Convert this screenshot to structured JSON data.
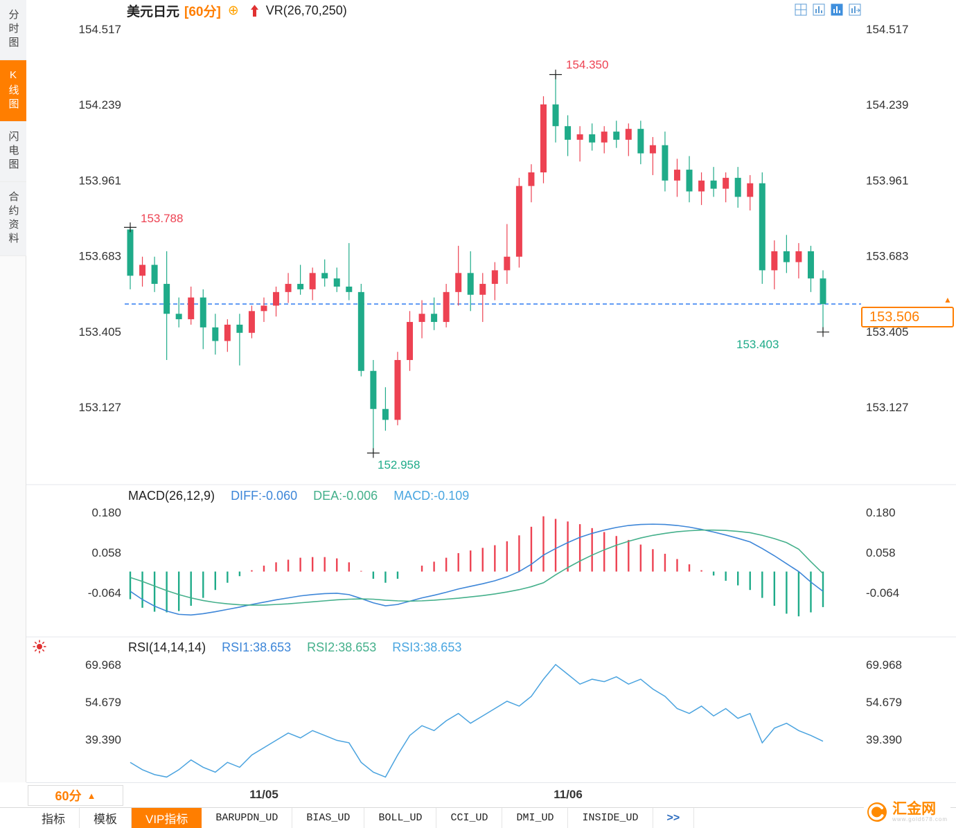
{
  "header": {
    "symbol": "美元日元",
    "timeframe": "[60分]",
    "vr_label": "VR(26,70,250)"
  },
  "icons": {
    "add": "⊕",
    "caret_up": "▲",
    "marker_up": "▲"
  },
  "sidebar": {
    "tabs": [
      {
        "label": "分时图",
        "active": false
      },
      {
        "label": "K线图",
        "active": true
      },
      {
        "label": "闪电图",
        "active": false
      },
      {
        "label": "合约资料",
        "active": false
      }
    ]
  },
  "colors": {
    "up": "#ed4252",
    "down": "#1fab89",
    "accent": "#ff7e00",
    "dashed_line": "#2e7bf0",
    "diff_line": "#3d86d8",
    "dea_line": "#44b08b",
    "rsi_line": "#4aa3df"
  },
  "chart_data": {
    "type": "candlestick",
    "title": "美元日元 60分 K线图",
    "price_axis": [
      "154.517",
      "154.239",
      "153.961",
      "153.683",
      "153.405",
      "153.127"
    ],
    "current_price": "153.506",
    "annotations": [
      {
        "text": "153.788",
        "type": "high",
        "candle": 0,
        "color": "up"
      },
      {
        "text": "154.350",
        "type": "high",
        "candle": 35,
        "color": "up"
      },
      {
        "text": "152.958",
        "type": "low",
        "candle": 20,
        "color": "down"
      },
      {
        "text": "153.403",
        "type": "low",
        "candle": 57,
        "color": "down"
      }
    ],
    "x_labels": [
      {
        "text": "11/05",
        "candle": 11
      },
      {
        "text": "11/06",
        "candle": 36
      }
    ],
    "candles": [
      [
        153.78,
        153.788,
        153.56,
        153.61
      ],
      [
        153.61,
        153.68,
        153.57,
        153.65
      ],
      [
        153.65,
        153.68,
        153.55,
        153.58
      ],
      [
        153.58,
        153.7,
        153.3,
        153.47
      ],
      [
        153.47,
        153.53,
        153.42,
        153.45
      ],
      [
        153.45,
        153.57,
        153.43,
        153.53
      ],
      [
        153.53,
        153.56,
        153.34,
        153.42
      ],
      [
        153.42,
        153.47,
        153.32,
        153.37
      ],
      [
        153.37,
        153.45,
        153.33,
        153.43
      ],
      [
        153.43,
        153.47,
        153.28,
        153.4
      ],
      [
        153.4,
        153.5,
        153.38,
        153.48
      ],
      [
        153.48,
        153.53,
        153.44,
        153.5
      ],
      [
        153.5,
        153.57,
        153.46,
        153.55
      ],
      [
        153.55,
        153.62,
        153.51,
        153.58
      ],
      [
        153.58,
        153.65,
        153.54,
        153.56
      ],
      [
        153.56,
        153.64,
        153.52,
        153.62
      ],
      [
        153.62,
        153.67,
        153.57,
        153.6
      ],
      [
        153.6,
        153.64,
        153.55,
        153.57
      ],
      [
        153.57,
        153.73,
        153.52,
        153.55
      ],
      [
        153.55,
        153.58,
        153.24,
        153.26
      ],
      [
        153.26,
        153.3,
        152.958,
        153.12
      ],
      [
        153.12,
        153.2,
        153.04,
        153.08
      ],
      [
        153.08,
        153.33,
        153.06,
        153.3
      ],
      [
        153.3,
        153.48,
        153.26,
        153.44
      ],
      [
        153.44,
        153.52,
        153.38,
        153.47
      ],
      [
        153.47,
        153.53,
        153.41,
        153.44
      ],
      [
        153.44,
        153.58,
        153.42,
        153.55
      ],
      [
        153.55,
        153.72,
        153.5,
        153.62
      ],
      [
        153.62,
        153.7,
        153.48,
        153.54
      ],
      [
        153.54,
        153.62,
        153.44,
        153.58
      ],
      [
        153.58,
        153.66,
        153.52,
        153.63
      ],
      [
        153.63,
        153.8,
        153.58,
        153.68
      ],
      [
        153.68,
        153.97,
        153.64,
        153.94
      ],
      [
        153.94,
        154.02,
        153.88,
        153.99
      ],
      [
        153.99,
        154.27,
        153.95,
        154.24
      ],
      [
        154.24,
        154.35,
        154.1,
        154.16
      ],
      [
        154.16,
        154.2,
        154.05,
        154.11
      ],
      [
        154.11,
        154.16,
        154.03,
        154.13
      ],
      [
        154.13,
        154.17,
        154.07,
        154.1
      ],
      [
        154.1,
        154.16,
        154.06,
        154.14
      ],
      [
        154.14,
        154.18,
        154.08,
        154.11
      ],
      [
        154.11,
        154.17,
        154.05,
        154.15
      ],
      [
        154.15,
        154.18,
        154.02,
        154.06
      ],
      [
        154.06,
        154.12,
        153.98,
        154.09
      ],
      [
        154.09,
        154.14,
        153.92,
        153.96
      ],
      [
        153.96,
        154.04,
        153.9,
        154.0
      ],
      [
        154.0,
        154.05,
        153.88,
        153.92
      ],
      [
        153.92,
        153.99,
        153.87,
        153.96
      ],
      [
        153.96,
        154.01,
        153.9,
        153.93
      ],
      [
        153.93,
        153.99,
        153.88,
        153.97
      ],
      [
        153.97,
        154.01,
        153.86,
        153.9
      ],
      [
        153.9,
        153.98,
        153.85,
        153.95
      ],
      [
        153.95,
        153.99,
        153.58,
        153.63
      ],
      [
        153.63,
        153.74,
        153.56,
        153.7
      ],
      [
        153.7,
        153.76,
        153.62,
        153.66
      ],
      [
        153.66,
        153.73,
        153.6,
        153.7
      ],
      [
        153.7,
        153.72,
        153.55,
        153.6
      ],
      [
        153.6,
        153.63,
        153.403,
        153.506
      ]
    ],
    "macd": {
      "title": "MACD(26,12,9)",
      "diff_label": "DIFF:-0.060",
      "dea_label": "DEA:-0.006",
      "macd_label": "MACD:-0.109",
      "axis": [
        "0.180",
        "0.058",
        "-0.064"
      ],
      "diff": [
        -0.06,
        -0.085,
        -0.105,
        -0.12,
        -0.13,
        -0.132,
        -0.128,
        -0.122,
        -0.115,
        -0.108,
        -0.1,
        -0.093,
        -0.086,
        -0.08,
        -0.074,
        -0.07,
        -0.067,
        -0.066,
        -0.07,
        -0.082,
        -0.095,
        -0.104,
        -0.1,
        -0.09,
        -0.08,
        -0.072,
        -0.063,
        -0.053,
        -0.045,
        -0.037,
        -0.028,
        -0.016,
        0.0,
        0.022,
        0.05,
        0.07,
        0.088,
        0.104,
        0.116,
        0.126,
        0.134,
        0.14,
        0.143,
        0.144,
        0.143,
        0.14,
        0.135,
        0.128,
        0.12,
        0.111,
        0.101,
        0.09,
        0.07,
        0.048,
        0.024,
        0.0,
        -0.032,
        -0.06
      ],
      "dea": [
        -0.018,
        -0.03,
        -0.044,
        -0.058,
        -0.07,
        -0.08,
        -0.088,
        -0.094,
        -0.098,
        -0.101,
        -0.102,
        -0.102,
        -0.1,
        -0.098,
        -0.095,
        -0.092,
        -0.089,
        -0.086,
        -0.084,
        -0.083,
        -0.084,
        -0.087,
        -0.089,
        -0.09,
        -0.089,
        -0.087,
        -0.084,
        -0.081,
        -0.077,
        -0.073,
        -0.068,
        -0.062,
        -0.055,
        -0.046,
        -0.034,
        -0.01,
        0.012,
        0.032,
        0.05,
        0.066,
        0.08,
        0.092,
        0.102,
        0.11,
        0.116,
        0.121,
        0.124,
        0.126,
        0.126,
        0.125,
        0.122,
        0.118,
        0.11,
        0.1,
        0.088,
        0.068,
        0.03,
        -0.006
      ]
    },
    "rsi": {
      "title": "RSI(14,14,14)",
      "labels": [
        "RSI1:38.653",
        "RSI2:38.653",
        "RSI3:38.653"
      ],
      "axis": [
        "69.968",
        "54.679",
        "39.390"
      ],
      "values": [
        30,
        27,
        25,
        24,
        27,
        31,
        28,
        26,
        30,
        28,
        33,
        36,
        39,
        42,
        40,
        43,
        41,
        39,
        38,
        30,
        26,
        24,
        33,
        41,
        45,
        43,
        47,
        50,
        46,
        49,
        52,
        55,
        53,
        57,
        64,
        70,
        66,
        62,
        64,
        63,
        65,
        62,
        64,
        60,
        57,
        52,
        50,
        53,
        49,
        52,
        48,
        50,
        38,
        44,
        46,
        43,
        41,
        38.653
      ]
    }
  },
  "footer": {
    "timeframe_button": "60分",
    "tabs": [
      {
        "label": "指标",
        "active": false
      },
      {
        "label": "模板",
        "active": false
      },
      {
        "label": "VIP指标",
        "active": true
      },
      {
        "label": "BARUPDN_UD",
        "active": false
      },
      {
        "label": "BIAS_UD",
        "active": false
      },
      {
        "label": "BOLL_UD",
        "active": false
      },
      {
        "label": "CCI_UD",
        "active": false
      },
      {
        "label": "DMI_UD",
        "active": false
      },
      {
        "label": "INSIDE_UD",
        "active": false
      },
      {
        "label": ">>",
        "active": false
      }
    ]
  },
  "logo": {
    "name": "汇金网",
    "sub": "www.gold678.com"
  }
}
